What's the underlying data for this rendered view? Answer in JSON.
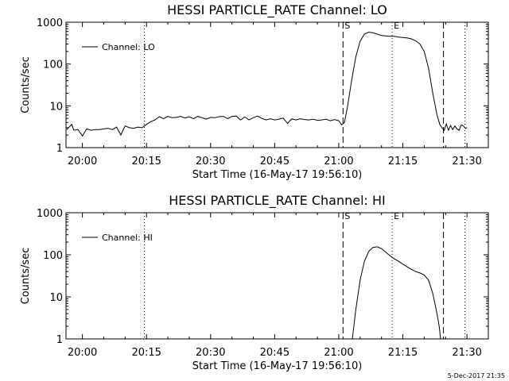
{
  "footer": {
    "stamp": "5-Dec-2017 21:35"
  },
  "chart_data": [
    {
      "type": "line",
      "title": "HESSI PARTICLE_RATE Channel: LO",
      "xlabel": "Start Time (16-May-17 19:56:10)",
      "ylabel": "Counts/sec",
      "yscale": "log",
      "ylim": [
        1,
        1000
      ],
      "xlim": [
        "19:56:10",
        "21:35:00"
      ],
      "x_ticks": [
        "20:00",
        "20:15",
        "20:30",
        "20:45",
        "21:00",
        "21:15",
        "21:30"
      ],
      "y_ticks": [
        "1",
        "10",
        "100",
        "1000"
      ],
      "grid": false,
      "legend": {
        "position": "top-left",
        "entries": [
          "Channel: LO"
        ]
      },
      "markers": [
        {
          "time": "20:14:30",
          "style": "dotted",
          "label": ""
        },
        {
          "time": "21:01:00",
          "style": "dashed",
          "label": "S"
        },
        {
          "time": "21:12:30",
          "style": "dotted",
          "label": "E"
        },
        {
          "time": "21:24:30",
          "style": "dashed",
          "label": ""
        },
        {
          "time": "21:29:30",
          "style": "dotted",
          "label": ""
        }
      ],
      "series": [
        {
          "name": "Channel: LO",
          "x": [
            "19:56:20",
            "19:57:30",
            "19:58:00",
            "19:59:00",
            "20:00:00",
            "20:01:00",
            "20:02:00",
            "20:03:00",
            "20:04:00",
            "20:05:00",
            "20:06:00",
            "20:07:00",
            "20:08:00",
            "20:09:00",
            "20:10:00",
            "20:11:00",
            "20:12:00",
            "20:13:00",
            "20:14:00",
            "20:15:00",
            "20:16:00",
            "20:17:00",
            "20:18:00",
            "20:19:00",
            "20:20:00",
            "20:21:00",
            "20:22:00",
            "20:23:00",
            "20:24:00",
            "20:25:00",
            "20:26:00",
            "20:27:00",
            "20:28:00",
            "20:29:00",
            "20:30:00",
            "20:31:00",
            "20:32:00",
            "20:33:00",
            "20:34:00",
            "20:35:00",
            "20:36:00",
            "20:37:00",
            "20:38:00",
            "20:39:00",
            "20:40:00",
            "20:41:00",
            "20:42:00",
            "20:43:00",
            "20:44:00",
            "20:45:00",
            "20:46:00",
            "20:47:00",
            "20:48:00",
            "20:49:00",
            "20:50:00",
            "20:51:00",
            "20:52:00",
            "20:53:00",
            "20:54:00",
            "20:55:00",
            "20:56:00",
            "20:57:00",
            "20:58:00",
            "20:59:00",
            "21:00:00",
            "21:00:40",
            "21:01:20",
            "21:02:00",
            "21:03:00",
            "21:04:00",
            "21:05:00",
            "21:06:00",
            "21:07:00",
            "21:08:00",
            "21:09:00",
            "21:10:00",
            "21:11:00",
            "21:12:00",
            "21:13:00",
            "21:14:00",
            "21:15:00",
            "21:16:00",
            "21:17:00",
            "21:18:00",
            "21:19:00",
            "21:20:00",
            "21:21:00",
            "21:22:00",
            "21:23:00",
            "21:23:40",
            "21:24:10",
            "21:24:40",
            "21:25:10",
            "21:25:40",
            "21:26:10",
            "21:26:40",
            "21:27:10",
            "21:27:40",
            "21:28:10",
            "21:28:40",
            "21:29:10",
            "21:29:40",
            "21:30:00"
          ],
          "y": [
            2.7,
            3.6,
            2.6,
            2.7,
            1.9,
            2.8,
            2.6,
            2.7,
            2.7,
            2.8,
            2.9,
            2.7,
            3.1,
            2.0,
            3.3,
            3.0,
            2.9,
            3.1,
            3.0,
            3.6,
            4.2,
            4.6,
            5.5,
            4.9,
            5.6,
            5.2,
            5.3,
            5.6,
            5.1,
            5.5,
            4.9,
            5.6,
            5.2,
            4.8,
            5.3,
            5.2,
            5.5,
            5.6,
            4.9,
            5.6,
            5.7,
            4.6,
            5.4,
            4.6,
            5.2,
            5.7,
            5.0,
            4.6,
            4.9,
            4.6,
            4.8,
            5.1,
            3.8,
            4.9,
            4.6,
            4.9,
            4.7,
            4.6,
            4.8,
            4.5,
            4.6,
            4.8,
            4.4,
            4.7,
            4.4,
            3.5,
            4.0,
            9.0,
            40,
            150,
            350,
            520,
            580,
            560,
            520,
            480,
            470,
            460,
            460,
            440,
            430,
            420,
            400,
            360,
            300,
            200,
            80,
            20,
            6,
            3.5,
            3.0,
            2.6,
            3.7,
            2.6,
            3.4,
            2.7,
            3.3,
            2.8,
            2.6,
            3.5,
            3.3,
            2.9,
            3.0
          ]
        }
      ]
    },
    {
      "type": "line",
      "title": "HESSI PARTICLE_RATE Channel: HI",
      "xlabel": "Start Time (16-May-17 19:56:10)",
      "ylabel": "Counts/sec",
      "yscale": "log",
      "ylim": [
        1,
        1000
      ],
      "xlim": [
        "19:56:10",
        "21:35:00"
      ],
      "x_ticks": [
        "20:00",
        "20:15",
        "20:30",
        "20:45",
        "21:00",
        "21:15",
        "21:30"
      ],
      "y_ticks": [
        "1",
        "10",
        "100",
        "1000"
      ],
      "grid": false,
      "legend": {
        "position": "top-left",
        "entries": [
          "Channel: HI"
        ]
      },
      "markers": [
        {
          "time": "20:14:30",
          "style": "dotted",
          "label": ""
        },
        {
          "time": "21:01:00",
          "style": "dashed",
          "label": "S"
        },
        {
          "time": "21:12:30",
          "style": "dotted",
          "label": "E"
        },
        {
          "time": "21:24:30",
          "style": "dashed",
          "label": ""
        },
        {
          "time": "21:29:30",
          "style": "dotted",
          "label": ""
        }
      ],
      "series": [
        {
          "name": "Channel: HI",
          "x": [
            "21:03:10",
            "21:04:00",
            "21:05:00",
            "21:06:00",
            "21:07:00",
            "21:08:00",
            "21:09:00",
            "21:10:00",
            "21:11:00",
            "21:12:00",
            "21:13:00",
            "21:14:00",
            "21:15:00",
            "21:16:00",
            "21:17:00",
            "21:18:00",
            "21:19:00",
            "21:20:00",
            "21:21:00",
            "21:22:00",
            "21:23:00",
            "21:23:30",
            "21:23:50"
          ],
          "y": [
            1.0,
            5,
            25,
            70,
            120,
            150,
            155,
            140,
            115,
            95,
            80,
            70,
            60,
            52,
            45,
            40,
            37,
            33,
            25,
            12,
            4,
            2,
            1.0
          ]
        }
      ]
    }
  ]
}
